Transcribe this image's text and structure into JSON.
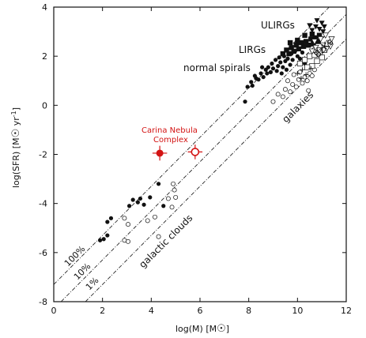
{
  "chart_data": {
    "type": "scatter",
    "xlabel": "log(M) [M☉]",
    "ylabel": "log(SFR) [M☉ yr-1]",
    "xlim": [
      0,
      12
    ],
    "ylim": [
      -8,
      4
    ],
    "x_ticks": [
      0,
      2,
      4,
      6,
      8,
      10,
      12
    ],
    "y_ticks": [
      -8,
      -6,
      -4,
      -2,
      0,
      2,
      4
    ],
    "grid": false,
    "annotations": {
      "ulirgs": "ULIRGs",
      "lirgs": "LIRGs",
      "normal_spirals": "normal spirals",
      "bzks": "BzKs",
      "galaxies": "galaxies",
      "galactic_clouds": "galactic clouds",
      "carina_line1": "Carina Nebula",
      "carina_line2": "Complex",
      "pct100": "100%",
      "pct10": "10%",
      "pct1": "1%"
    },
    "colors": {
      "carina": "#d31313",
      "ink": "#111111"
    },
    "lines": [
      {
        "label": "100%",
        "slope": 1,
        "intercept": -7.3
      },
      {
        "label": "10%",
        "slope": 1,
        "intercept": -8.3
      },
      {
        "label": "1%",
        "slope": 1,
        "intercept": -9.3
      }
    ],
    "series": [
      {
        "marker": "filled-circle",
        "points": [
          [
            1.9,
            -5.5
          ],
          [
            2.05,
            -5.45
          ],
          [
            2.2,
            -5.3
          ],
          [
            2.35,
            -4.6
          ],
          [
            2.2,
            -4.75
          ],
          [
            3.1,
            -4.1
          ],
          [
            3.25,
            -3.85
          ],
          [
            3.7,
            -4.05
          ],
          [
            3.55,
            -3.8
          ],
          [
            3.45,
            -3.95
          ],
          [
            3.95,
            -3.75
          ],
          [
            4.3,
            -3.2
          ],
          [
            4.5,
            -4.1
          ],
          [
            7.85,
            0.15
          ],
          [
            7.95,
            0.75
          ],
          [
            8.1,
            0.95
          ],
          [
            8.15,
            0.8
          ],
          [
            8.3,
            1.1
          ],
          [
            8.4,
            1.05
          ],
          [
            8.25,
            1.2
          ],
          [
            8.5,
            1.3
          ],
          [
            8.6,
            1.15
          ],
          [
            8.7,
            1.45
          ],
          [
            8.75,
            1.3
          ],
          [
            8.8,
            1.55
          ],
          [
            8.9,
            1.35
          ],
          [
            8.95,
            1.7
          ],
          [
            9.0,
            1.5
          ],
          [
            9.1,
            1.85
          ],
          [
            9.2,
            1.6
          ],
          [
            9.25,
            1.95
          ],
          [
            9.3,
            1.75
          ],
          [
            9.4,
            1.55
          ],
          [
            9.45,
            2.0
          ],
          [
            9.5,
            1.8
          ],
          [
            9.6,
            1.9
          ],
          [
            9.7,
            1.65
          ],
          [
            9.75,
            2.1
          ],
          [
            9.8,
            1.85
          ],
          [
            9.9,
            2.2
          ],
          [
            10.0,
            2.0
          ],
          [
            10.1,
            1.9
          ],
          [
            10.2,
            2.15
          ],
          [
            9.15,
            1.4
          ],
          [
            9.35,
            1.3
          ],
          [
            8.55,
            1.55
          ],
          [
            10.3,
            1.7
          ],
          [
            9.55,
            1.45
          ]
        ]
      },
      {
        "marker": "open-circle",
        "points": [
          [
            2.9,
            -5.5
          ],
          [
            3.05,
            -5.55
          ],
          [
            2.9,
            -4.6
          ],
          [
            3.05,
            -4.85
          ],
          [
            3.85,
            -4.7
          ],
          [
            4.15,
            -4.55
          ],
          [
            4.3,
            -5.35
          ],
          [
            4.7,
            -3.8
          ],
          [
            4.85,
            -4.15
          ],
          [
            5.0,
            -3.75
          ],
          [
            4.95,
            -3.45
          ],
          [
            4.9,
            -3.2
          ],
          [
            9.0,
            0.15
          ],
          [
            9.2,
            0.45
          ],
          [
            9.4,
            0.35
          ],
          [
            9.5,
            0.65
          ],
          [
            9.7,
            0.55
          ],
          [
            9.8,
            0.85
          ],
          [
            9.95,
            0.75
          ],
          [
            10.05,
            1.05
          ],
          [
            10.2,
            0.9
          ],
          [
            10.3,
            1.15
          ],
          [
            10.4,
            1.0
          ],
          [
            10.5,
            1.3
          ],
          [
            10.6,
            1.2
          ],
          [
            10.7,
            1.45
          ],
          [
            9.6,
            1.0
          ],
          [
            9.85,
            1.25
          ],
          [
            10.1,
            1.35
          ],
          [
            10.45,
            0.6
          ]
        ]
      },
      {
        "marker": "filled-square",
        "points": [
          [
            9.4,
            2.1
          ],
          [
            9.55,
            2.25
          ],
          [
            9.65,
            2.1
          ],
          [
            9.75,
            2.35
          ],
          [
            9.85,
            2.2
          ],
          [
            9.95,
            2.45
          ],
          [
            10.05,
            2.3
          ],
          [
            10.15,
            2.55
          ],
          [
            10.25,
            2.4
          ],
          [
            10.35,
            2.6
          ],
          [
            10.45,
            2.45
          ],
          [
            10.55,
            2.7
          ],
          [
            10.65,
            2.5
          ],
          [
            10.75,
            2.75
          ],
          [
            10.85,
            2.6
          ],
          [
            9.7,
            2.55
          ],
          [
            10.0,
            2.65
          ],
          [
            10.3,
            2.85
          ],
          [
            10.6,
            2.9
          ],
          [
            10.9,
            2.85
          ]
        ]
      },
      {
        "marker": "open-square",
        "points": [
          [
            10.1,
            1.7
          ],
          [
            10.3,
            1.85
          ],
          [
            10.5,
            2.0
          ],
          [
            10.7,
            2.05
          ],
          [
            10.9,
            2.15
          ],
          [
            11.0,
            1.95
          ],
          [
            10.6,
            1.6
          ],
          [
            10.8,
            1.8
          ],
          [
            11.1,
            2.25
          ],
          [
            10.4,
            1.55
          ]
        ]
      },
      {
        "marker": "filled-triangle-down",
        "points": [
          [
            10.6,
            3.05
          ],
          [
            10.75,
            3.2
          ],
          [
            10.9,
            3.1
          ],
          [
            11.0,
            3.35
          ],
          [
            11.1,
            3.2
          ],
          [
            10.8,
            3.45
          ],
          [
            10.5,
            3.25
          ],
          [
            11.05,
            3.0
          ]
        ]
      },
      {
        "marker": "open-triangle-down",
        "points": [
          [
            10.6,
            2.2
          ],
          [
            10.75,
            2.35
          ],
          [
            10.9,
            2.25
          ],
          [
            11.05,
            2.45
          ],
          [
            11.2,
            2.3
          ],
          [
            11.3,
            2.55
          ],
          [
            10.95,
            2.7
          ],
          [
            11.15,
            2.85
          ],
          [
            11.35,
            2.4
          ],
          [
            10.7,
            2.6
          ],
          [
            11.4,
            2.7
          ]
        ]
      },
      {
        "marker": "plus",
        "points": [
          [
            10.0,
            1.3
          ],
          [
            10.2,
            1.45
          ],
          [
            10.35,
            1.25
          ],
          [
            10.55,
            1.5
          ],
          [
            10.15,
            1.1
          ]
        ]
      },
      {
        "marker": "carina-filled",
        "points": [
          [
            4.35,
            -1.95
          ]
        ],
        "xerr": 0.3,
        "yerr": 0.3
      },
      {
        "marker": "carina-open",
        "points": [
          [
            5.8,
            -1.9
          ]
        ],
        "xerr": 0.3,
        "yerr": 0.3
      }
    ]
  }
}
